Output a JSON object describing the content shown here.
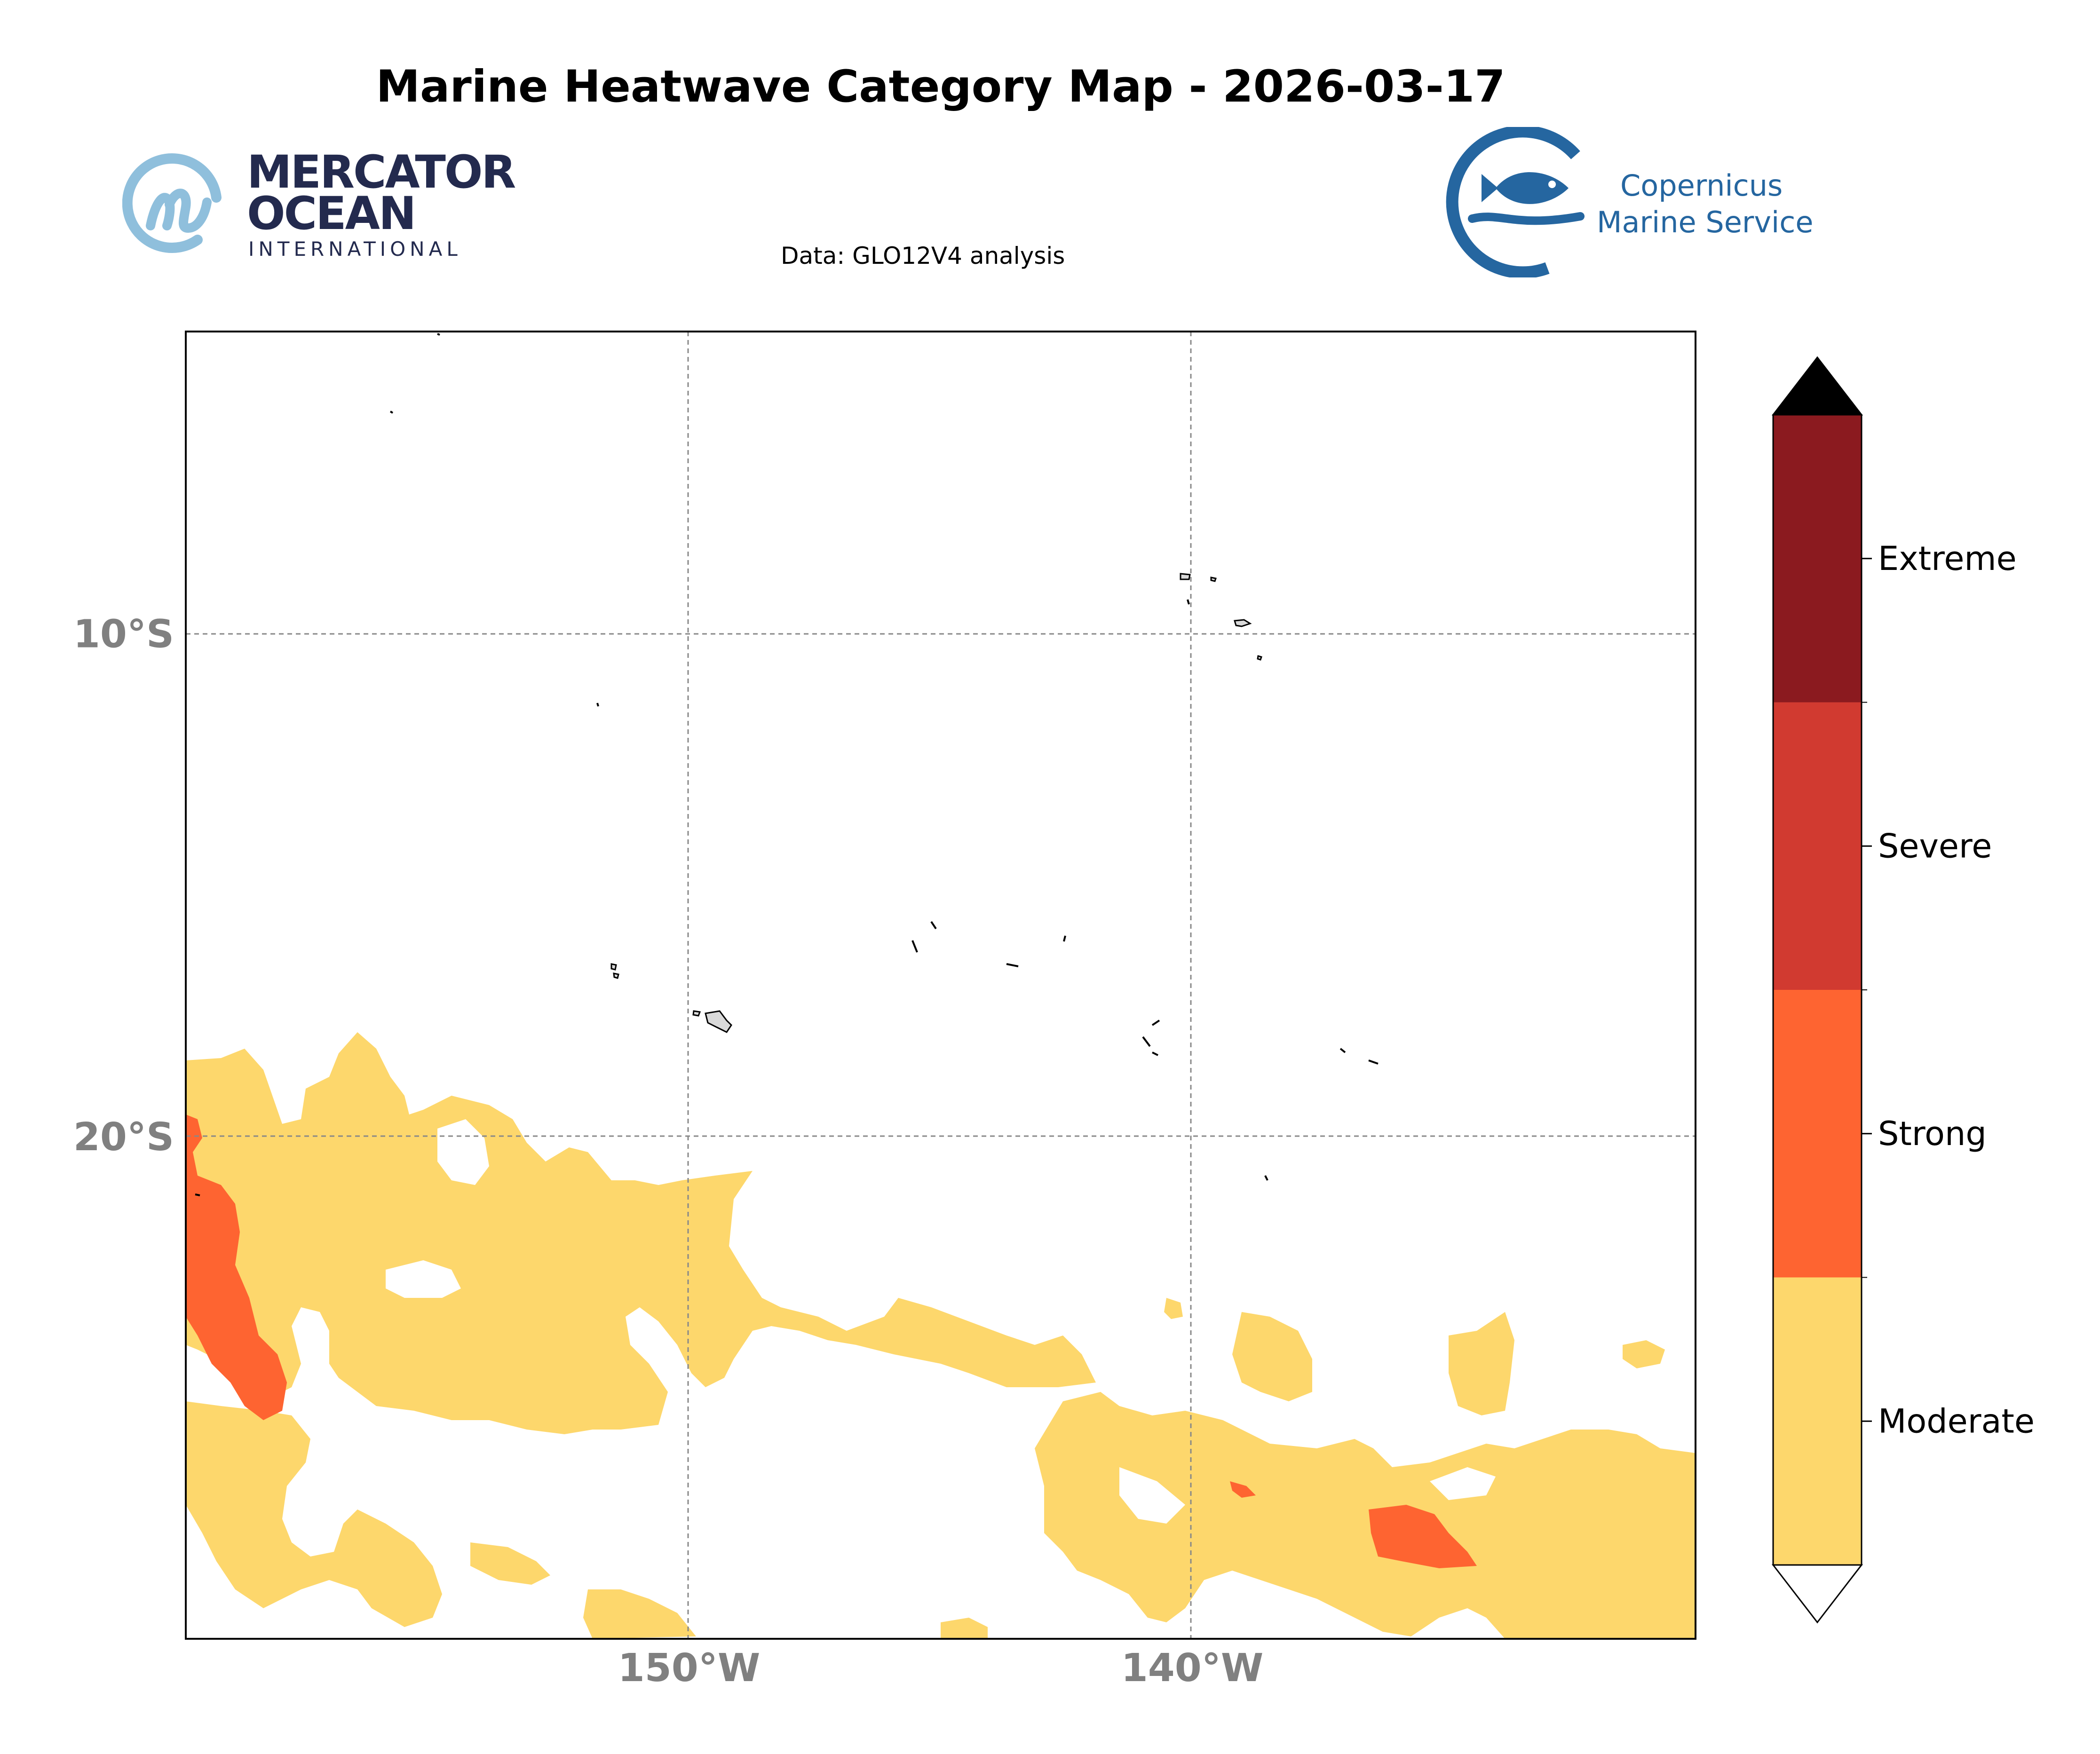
{
  "title": "Marine Heatwave Category Map - 2026-03-17",
  "subtitle": "Data: GLO12V4 analysis",
  "logos": {
    "mercator": {
      "line1": "MERCATOR",
      "line2": "OCEAN",
      "line3": "INTERNATIONAL",
      "color": "#232a4e",
      "accent": "#8fbfdc"
    },
    "copernicus": {
      "line1": "Copernicus",
      "line2": "Marine Service",
      "color": "#2566a0"
    }
  },
  "map": {
    "lon_ticks": [
      {
        "value": -150,
        "label": "150°W"
      },
      {
        "value": -140,
        "label": "140°W"
      }
    ],
    "lat_ticks": [
      {
        "value": -10,
        "label": "10°S"
      },
      {
        "value": -20,
        "label": "20°S"
      }
    ],
    "extent": {
      "lon_min": -160,
      "lon_max": -130,
      "lat_min": -30,
      "lat_max": -4
    },
    "gridlines": true
  },
  "legend": {
    "categories": [
      {
        "label": "Moderate",
        "color": "#fdd76c"
      },
      {
        "label": "Strong",
        "color": "#fe6431"
      },
      {
        "label": "Severe",
        "color": "#d13a30"
      },
      {
        "label": "Extreme",
        "color": "#8b1a1f"
      }
    ],
    "extend_max_color": "#000000",
    "extend_min_color": "#ffffff"
  },
  "colors": {
    "moderate": "#fdd76c",
    "strong": "#fe6431",
    "land": "#d9d9d9",
    "grid": "#888888",
    "tick_label": "#808080"
  }
}
